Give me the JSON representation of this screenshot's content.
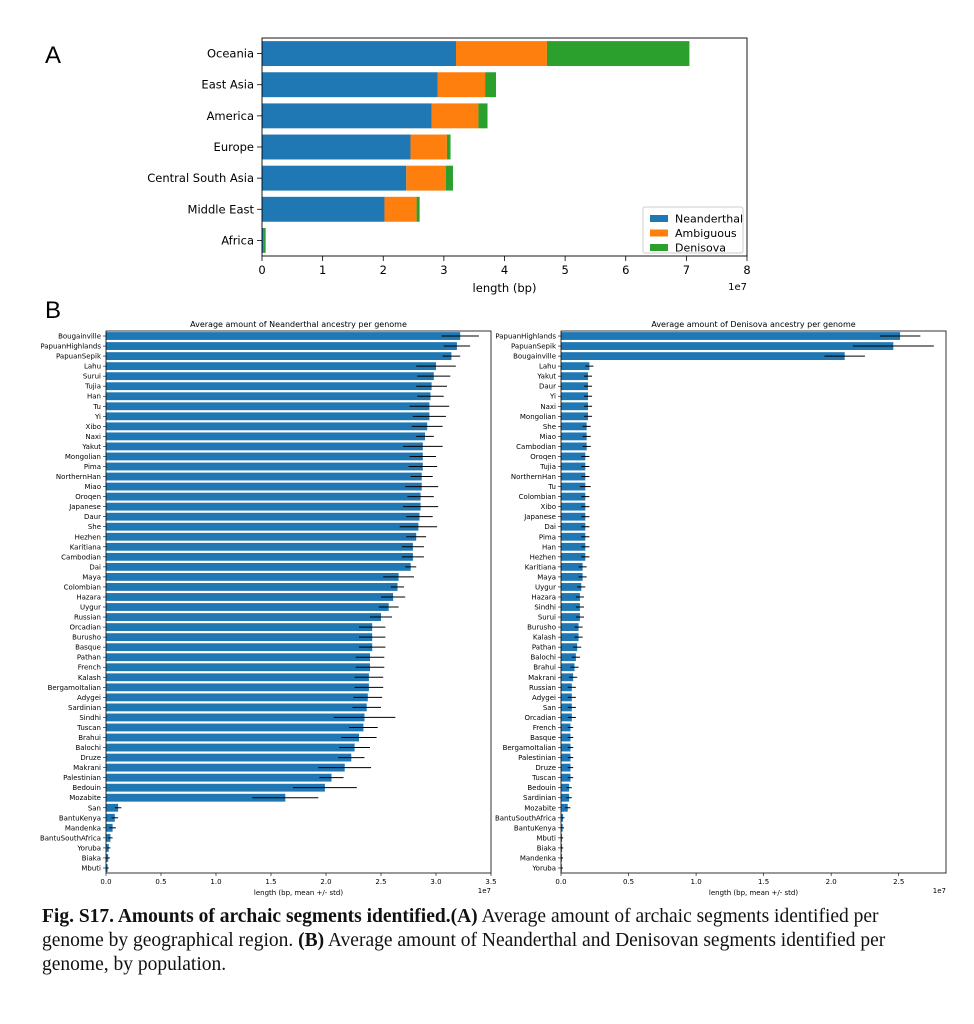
{
  "panels": {
    "a": "A",
    "b": "B"
  },
  "caption": {
    "label": "Fig. S17. Amounts of archaic segments identified.",
    "a_tag": "(A)",
    "a_text": " Average amount of archaic segments identified per genome by geographical region. ",
    "b_tag": "(B)",
    "b_text": " Average amount of Neanderthal and Denisovan segments identified per genome, by population."
  },
  "colors": {
    "neanderthal": "#1f77b4",
    "ambiguous": "#ff7f0e",
    "denisova": "#2ca02c",
    "errorbar": "#000000"
  },
  "chart_data": [
    {
      "type": "bar",
      "orientation": "horizontal",
      "stacked": true,
      "categories": [
        "Oceania",
        "East Asia",
        "America",
        "Europe",
        "Central South Asia",
        "Middle East",
        "Africa"
      ],
      "series": [
        {
          "name": "Neanderthal",
          "values": [
            32000000,
            29000000,
            28000000,
            24500000,
            23800000,
            20200000,
            300000
          ]
        },
        {
          "name": "Ambiguous",
          "values": [
            15000000,
            7800000,
            7700000,
            6000000,
            6500000,
            5300000,
            0
          ]
        },
        {
          "name": "Denisova",
          "values": [
            23500000,
            1800000,
            1500000,
            600000,
            1200000,
            500000,
            300000
          ]
        }
      ],
      "xlabel": "length (bp)",
      "xlim": [
        0,
        80000000
      ],
      "xticks": [
        "0",
        "1",
        "2",
        "3",
        "4",
        "5",
        "6",
        "7",
        "8"
      ],
      "xscale_label": "1e7",
      "legend_position": "lower-right"
    },
    {
      "type": "bar",
      "orientation": "horizontal",
      "title": "Average amount of Neanderthal ancestry per genome",
      "categories": [
        "Bougainville",
        "PapuanHighlands",
        "PapuanSepik",
        "Lahu",
        "Surui",
        "Tujia",
        "Han",
        "Tu",
        "Yi",
        "Xibo",
        "Naxi",
        "Yakut",
        "Mongolian",
        "Pima",
        "NorthernHan",
        "Miao",
        "Oroqen",
        "Japanese",
        "Daur",
        "She",
        "Hezhen",
        "Karitiana",
        "Cambodian",
        "Dai",
        "Maya",
        "Colombian",
        "Hazara",
        "Uygur",
        "Russian",
        "Orcadian",
        "Burusho",
        "Basque",
        "Pathan",
        "French",
        "Kalash",
        "BergamoItalian",
        "Adygei",
        "Sardinian",
        "Sindhi",
        "Tuscan",
        "Brahui",
        "Balochi",
        "Druze",
        "Makrani",
        "Palestinian",
        "Bedouin",
        "Mozabite",
        "San",
        "BantuKenya",
        "Mandenka",
        "BantuSouthAfrica",
        "Yoruba",
        "Biaka",
        "Mbuti"
      ],
      "values": [
        32200000,
        31900000,
        31400000,
        30000000,
        29800000,
        29600000,
        29500000,
        29400000,
        29400000,
        29200000,
        29000000,
        28800000,
        28800000,
        28800000,
        28700000,
        28700000,
        28600000,
        28600000,
        28500000,
        28400000,
        28200000,
        27900000,
        27900000,
        27700000,
        26600000,
        26500000,
        26100000,
        25700000,
        25000000,
        24200000,
        24200000,
        24200000,
        24000000,
        24000000,
        23900000,
        23900000,
        23800000,
        23700000,
        23500000,
        23400000,
        23000000,
        22600000,
        22300000,
        21700000,
        20500000,
        19900000,
        16300000,
        1100000,
        800000,
        600000,
        400000,
        250000,
        200000,
        150000
      ],
      "errors": [
        1700000,
        1200000,
        800000,
        1800000,
        1500000,
        1400000,
        1200000,
        1800000,
        1500000,
        1400000,
        800000,
        1800000,
        1200000,
        1300000,
        1000000,
        1500000,
        1200000,
        1600000,
        1200000,
        1700000,
        900000,
        1000000,
        1000000,
        500000,
        1400000,
        600000,
        1100000,
        900000,
        1000000,
        1200000,
        1200000,
        1200000,
        1300000,
        1300000,
        1300000,
        1300000,
        1300000,
        1300000,
        2800000,
        1300000,
        1600000,
        1400000,
        1200000,
        2400000,
        1100000,
        2900000,
        3000000,
        300000,
        300000,
        300000,
        200000,
        150000,
        150000,
        100000
      ],
      "xlabel": "length (bp, mean +/- std)",
      "xlim": [
        0,
        35000000
      ],
      "xticks": [
        "0.0",
        "0.5",
        "1.0",
        "1.5",
        "2.0",
        "2.5",
        "3.0",
        "3.5"
      ],
      "xscale_label": "1e7"
    },
    {
      "type": "bar",
      "orientation": "horizontal",
      "title": "Average amount of Denisova ancestry per genome",
      "categories": [
        "PapuanHighlands",
        "PapuanSepik",
        "Bougainville",
        "Lahu",
        "Yakut",
        "Daur",
        "Yi",
        "Naxi",
        "Mongolian",
        "She",
        "Miao",
        "Cambodian",
        "Oroqen",
        "Tujia",
        "NorthernHan",
        "Tu",
        "Colombian",
        "Xibo",
        "Japanese",
        "Dai",
        "Pima",
        "Han",
        "Hezhen",
        "Karitiana",
        "Maya",
        "Uygur",
        "Hazara",
        "Sindhi",
        "Surui",
        "Burusho",
        "Kalash",
        "Pathan",
        "Balochi",
        "Brahui",
        "Makrani",
        "Russian",
        "Adygei",
        "San",
        "Orcadian",
        "French",
        "Basque",
        "BergamoItalian",
        "Palestinian",
        "Druze",
        "Tuscan",
        "Bedouin",
        "Sardinian",
        "Mozabite",
        "BantuSouthAfrica",
        "BantuKenya",
        "Mbuti",
        "Biaka",
        "Mandenka",
        "Yoruba"
      ],
      "values": [
        25100000,
        24600000,
        21000000,
        2100000,
        2000000,
        2000000,
        2000000,
        2000000,
        2000000,
        1900000,
        1900000,
        1900000,
        1800000,
        1800000,
        1800000,
        1800000,
        1800000,
        1800000,
        1800000,
        1800000,
        1800000,
        1800000,
        1800000,
        1600000,
        1600000,
        1500000,
        1400000,
        1400000,
        1400000,
        1300000,
        1300000,
        1200000,
        1100000,
        1000000,
        900000,
        800000,
        800000,
        800000,
        800000,
        700000,
        700000,
        700000,
        700000,
        700000,
        700000,
        600000,
        600000,
        500000,
        150000,
        120000,
        80000,
        80000,
        70000,
        60000
      ],
      "errors": [
        1500000,
        3000000,
        1500000,
        300000,
        300000,
        300000,
        300000,
        300000,
        300000,
        300000,
        300000,
        300000,
        300000,
        300000,
        300000,
        400000,
        300000,
        300000,
        300000,
        300000,
        300000,
        300000,
        300000,
        300000,
        300000,
        300000,
        300000,
        300000,
        300000,
        300000,
        300000,
        300000,
        300000,
        300000,
        300000,
        300000,
        300000,
        300000,
        300000,
        200000,
        200000,
        200000,
        200000,
        200000,
        200000,
        200000,
        200000,
        200000,
        100000,
        100000,
        80000,
        80000,
        80000,
        80000
      ],
      "xlabel": "length (bp, mean +/- std)",
      "xlim": [
        0,
        28500000
      ],
      "xticks": [
        "0.0",
        "0.5",
        "1.0",
        "1.5",
        "2.0",
        "2.5"
      ],
      "xscale_label": "1e7"
    }
  ]
}
